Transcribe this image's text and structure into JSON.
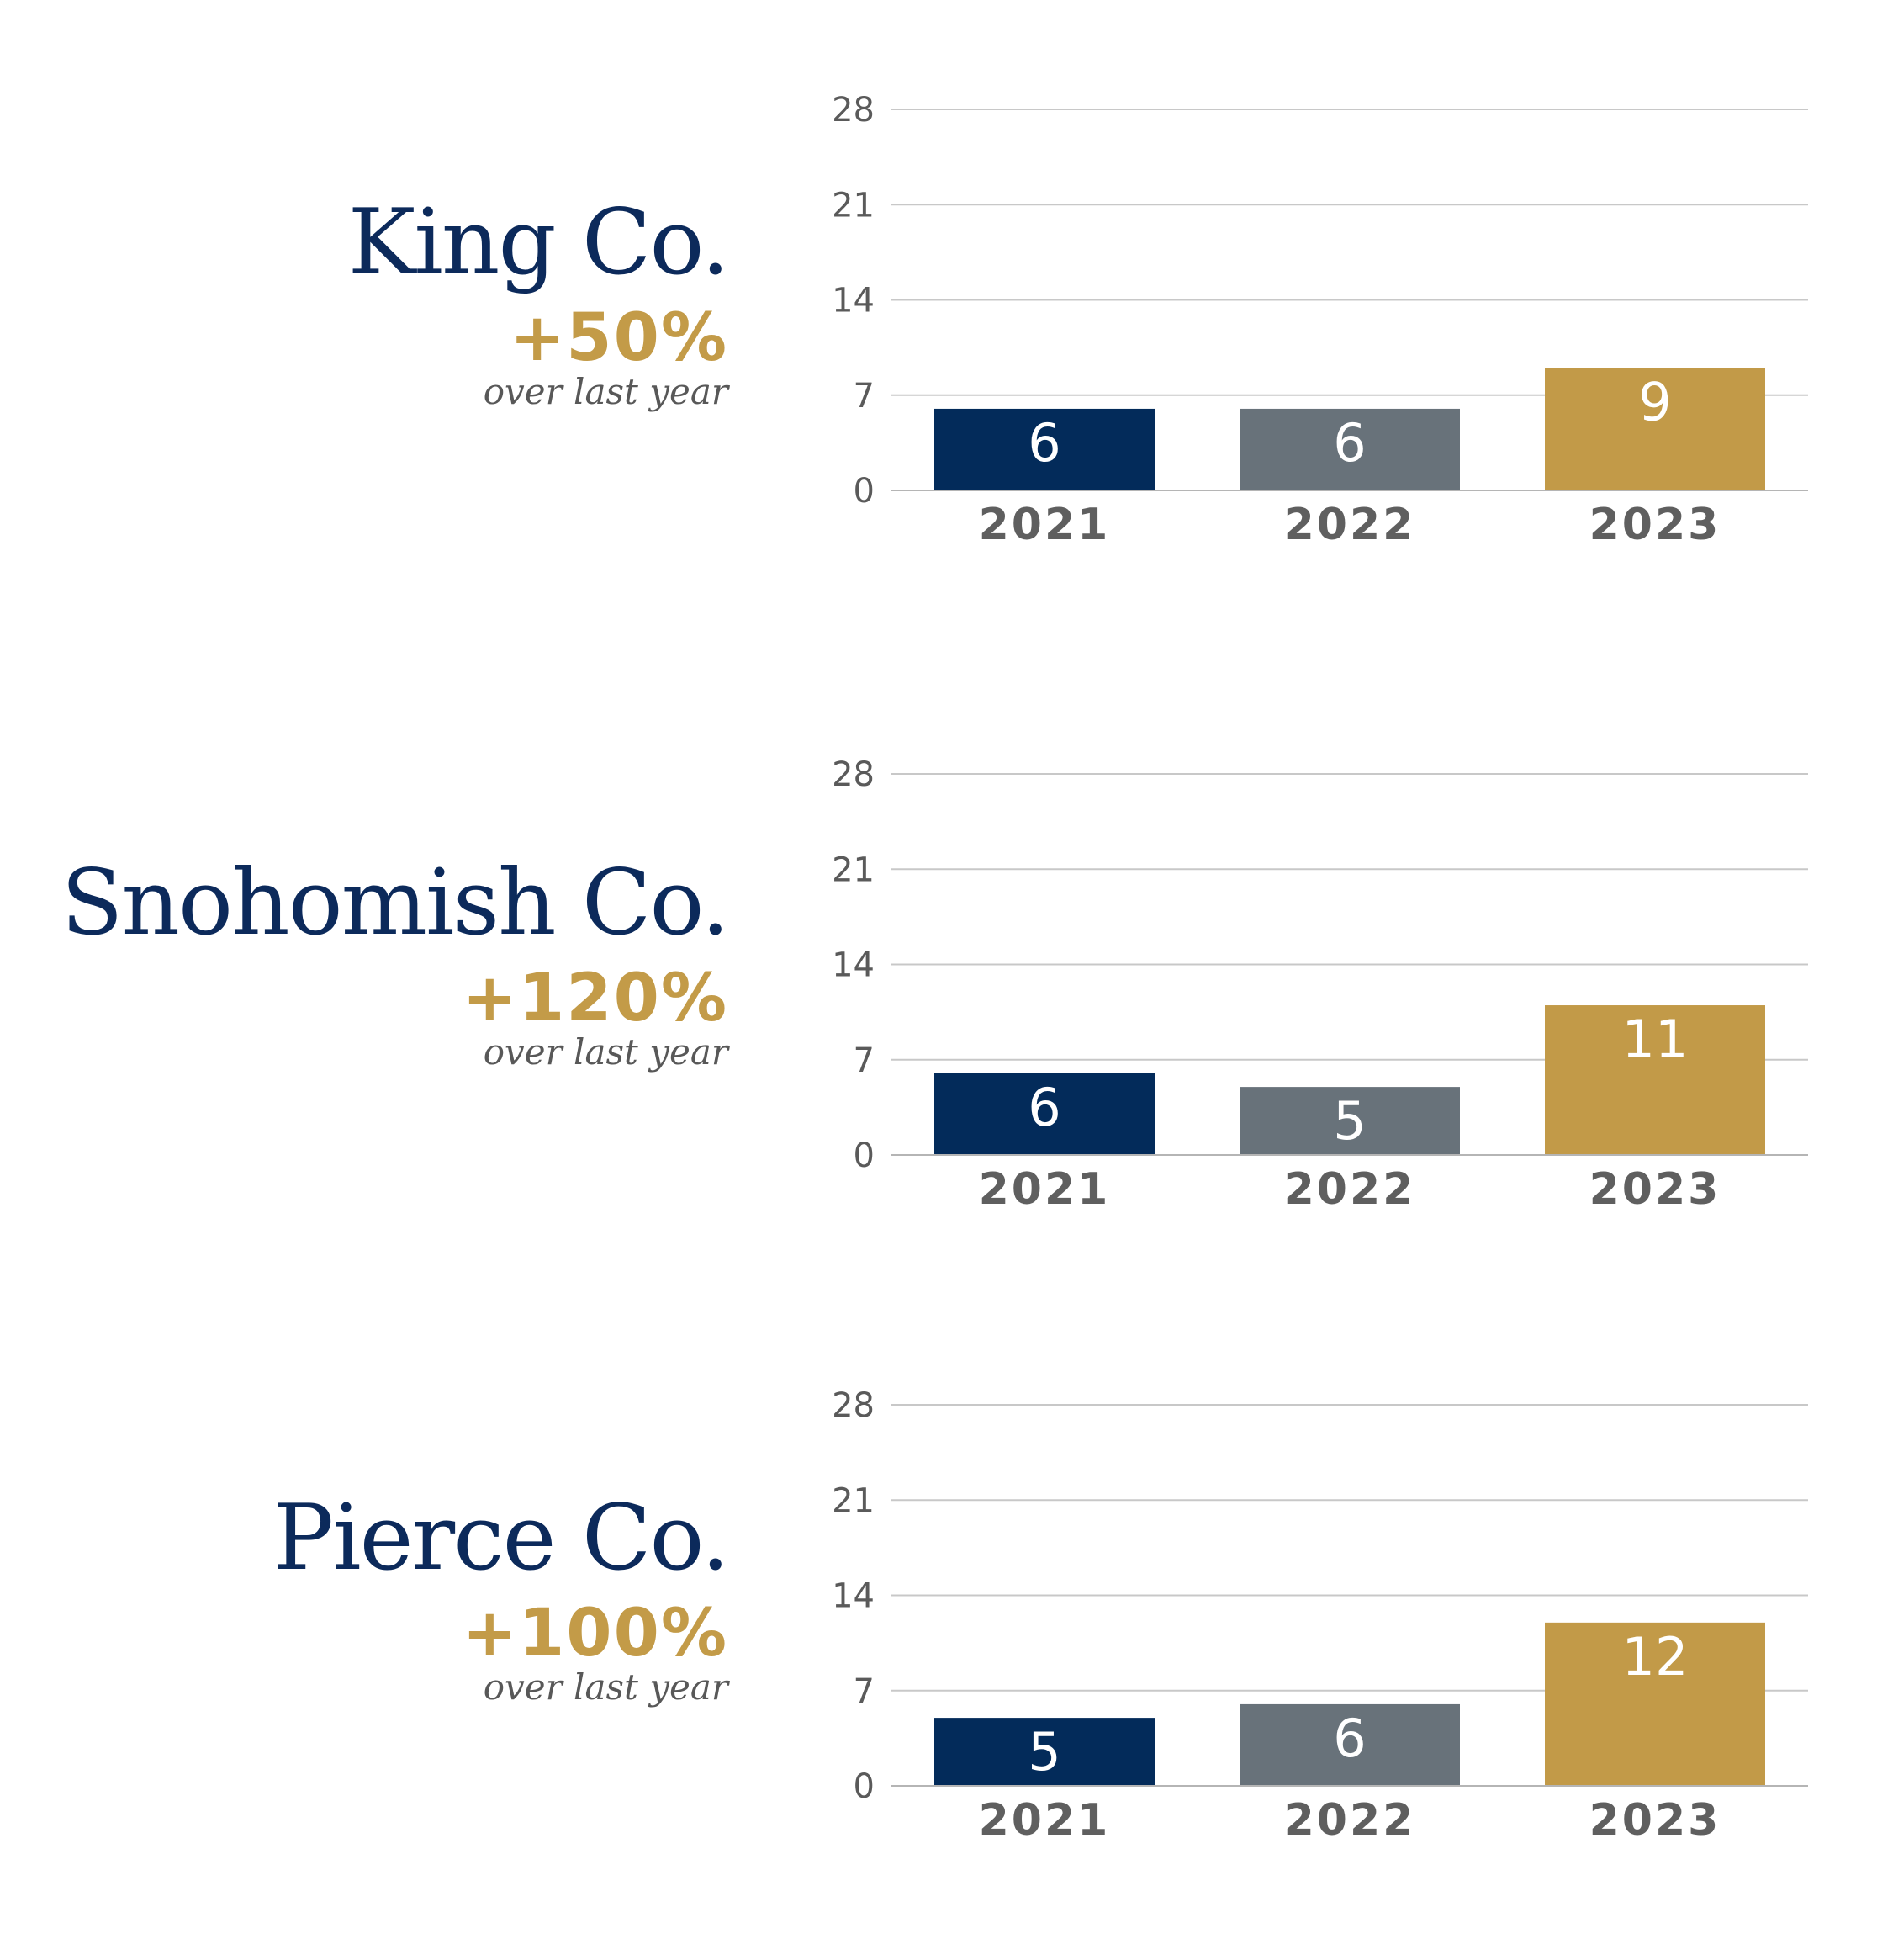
{
  "colors": {
    "bar_2021": "#032b5a",
    "bar_2022": "#68727a",
    "bar_2023": "#c29a48",
    "name": "#0c2a5b",
    "change": "#c39b48",
    "grid": "#c8c8c8",
    "axis_text": "#5a5a5a"
  },
  "chart_data": [
    {
      "type": "bar",
      "title": "King Co.",
      "change": "+50%",
      "note": "over last year",
      "categories": [
        "2021",
        "2022",
        "2023"
      ],
      "values": [
        6,
        6,
        9
      ],
      "ylim": [
        0,
        28
      ],
      "yticks": [
        "0",
        "7",
        "14",
        "21",
        "28"
      ],
      "grid": true
    },
    {
      "type": "bar",
      "title": "Snohomish Co.",
      "change": "+120%",
      "note": "over last year",
      "categories": [
        "2021",
        "2022",
        "2023"
      ],
      "values": [
        6,
        5,
        11
      ],
      "ylim": [
        0,
        28
      ],
      "yticks": [
        "0",
        "7",
        "14",
        "21",
        "28"
      ],
      "grid": true
    },
    {
      "type": "bar",
      "title": "Pierce Co.",
      "change": "+100%",
      "note": "over last year",
      "categories": [
        "2021",
        "2022",
        "2023"
      ],
      "values": [
        5,
        6,
        12
      ],
      "ylim": [
        0,
        28
      ],
      "yticks": [
        "0",
        "7",
        "14",
        "21",
        "28"
      ],
      "grid": true
    }
  ]
}
